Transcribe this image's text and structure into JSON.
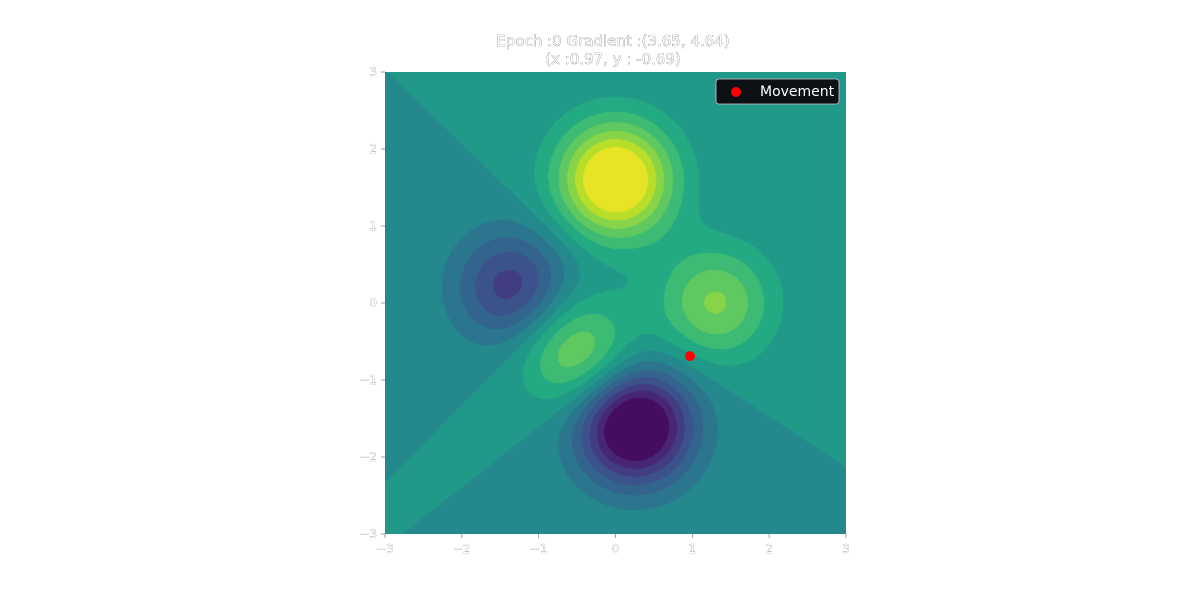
{
  "chart_data": {
    "type": "heatmap",
    "title_lines": [
      "Epoch :0 Gradient :(3.65, 4.64)",
      "(x :0.97, y : -0.69)"
    ],
    "xlim": [
      -3,
      3
    ],
    "ylim": [
      -3,
      3
    ],
    "x_ticks": [
      -3,
      -2,
      -1,
      0,
      1,
      2,
      3
    ],
    "y_ticks": [
      -3,
      -2,
      -1,
      0,
      1,
      2,
      3
    ],
    "x_tick_labels": [
      "−3",
      "−2",
      "−1",
      "0",
      "1",
      "2",
      "3"
    ],
    "y_tick_labels": [
      "−3",
      "−2",
      "−1",
      "0",
      "1",
      "2",
      "3"
    ],
    "surface": {
      "colormap": "viridis",
      "contour_levels": 14,
      "z_range": [
        -1.6,
        1.6
      ],
      "peaks": [
        {
          "x": 0.0,
          "y": 1.6,
          "z": 1.9
        },
        {
          "x": 1.3,
          "y": 0.0,
          "z": 0.95
        },
        {
          "x": -0.5,
          "y": -0.65,
          "z": 1.0
        },
        {
          "x": -1.35,
          "y": 0.2,
          "z": -1.05
        },
        {
          "x": 0.25,
          "y": -1.6,
          "z": -2.0
        }
      ]
    },
    "series": [
      {
        "name": "Movement",
        "type": "scatter",
        "color": "#ff0000",
        "x": [
          0.97
        ],
        "y": [
          -0.69
        ]
      }
    ],
    "legend": {
      "position": "top-right",
      "background": "#0d1014"
    }
  }
}
